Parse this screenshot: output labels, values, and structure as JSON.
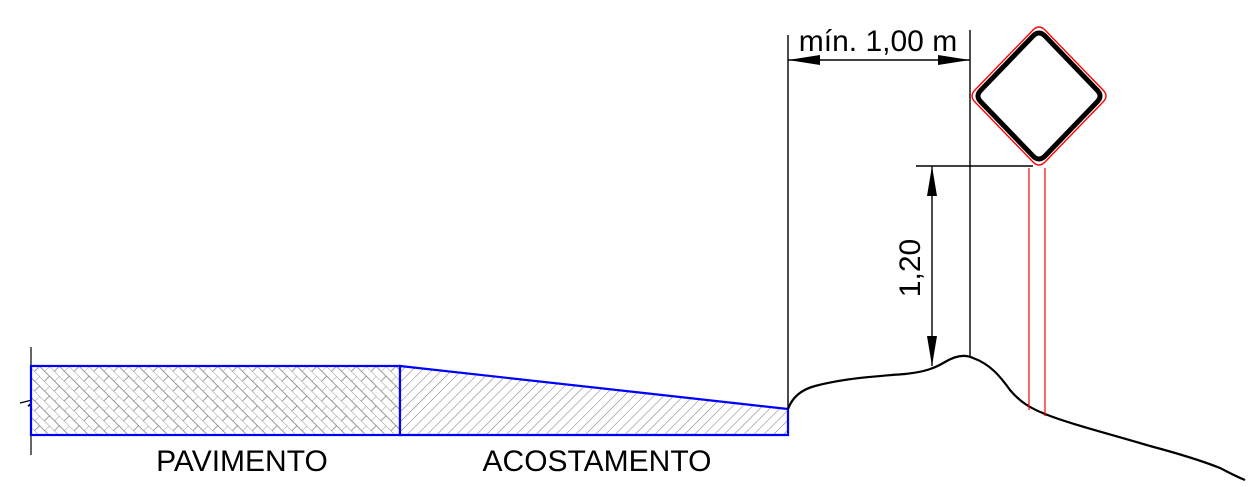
{
  "labels": {
    "pavement": "PAVIMENTO",
    "shoulder": "ACOSTAMENTO",
    "min_offset": "mín. 1,00 m",
    "height": "1,20"
  },
  "colors": {
    "pavement_outline": "#0000ff",
    "sign_outline": "#ff0000",
    "line": "#000000",
    "background": "#ffffff"
  },
  "icons": {
    "sign": "diamond-warning-sign"
  }
}
